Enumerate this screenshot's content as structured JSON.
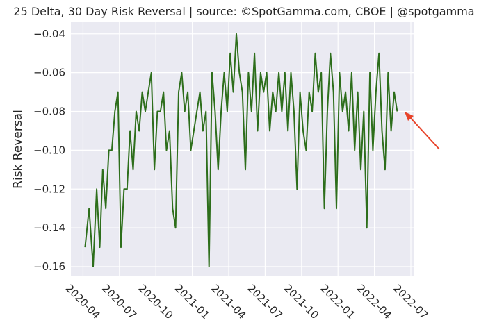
{
  "chart_data": {
    "type": "line",
    "title": "25 Delta, 30 Day Risk Reversal | source: ©SpotGamma.com, CBOE | @spotgamma",
    "y_label": "Risk Reversal",
    "x": [
      "2020-04",
      "2020-04",
      "2020-04",
      "2020-05",
      "2020-05",
      "2020-05",
      "2020-05",
      "2020-06",
      "2020-06",
      "2020-06",
      "2020-06",
      "2020-07",
      "2020-07",
      "2020-07",
      "2020-07",
      "2020-08",
      "2020-08",
      "2020-08",
      "2020-08",
      "2020-09",
      "2020-09",
      "2020-09",
      "2020-09",
      "2020-10",
      "2020-10",
      "2020-10",
      "2020-10",
      "2020-11",
      "2020-11",
      "2020-11",
      "2020-11",
      "2020-12",
      "2020-12",
      "2020-12",
      "2020-12",
      "2021-01",
      "2021-01",
      "2021-01",
      "2021-01",
      "2021-02",
      "2021-02",
      "2021-02",
      "2021-02",
      "2021-03",
      "2021-03",
      "2021-03",
      "2021-03",
      "2021-04",
      "2021-04",
      "2021-04",
      "2021-04",
      "2021-05",
      "2021-05",
      "2021-05",
      "2021-05",
      "2021-06",
      "2021-06",
      "2021-06",
      "2021-06",
      "2021-07",
      "2021-07",
      "2021-07",
      "2021-07",
      "2021-08",
      "2021-08",
      "2021-08",
      "2021-08",
      "2021-09",
      "2021-09",
      "2021-09",
      "2021-09",
      "2021-10",
      "2021-10",
      "2021-10",
      "2021-10",
      "2021-11",
      "2021-11",
      "2021-11",
      "2021-11",
      "2021-12",
      "2021-12",
      "2021-12",
      "2021-12",
      "2022-01",
      "2022-01",
      "2022-01",
      "2022-01",
      "2022-02",
      "2022-02",
      "2022-02",
      "2022-02",
      "2022-03",
      "2022-03",
      "2022-03",
      "2022-03",
      "2022-04",
      "2022-04",
      "2022-04",
      "2022-04",
      "2022-05",
      "2022-05",
      "2022-05",
      "2022-05"
    ],
    "series": [
      {
        "name": "Risk Reversal",
        "color": "#2d6e1b",
        "values": [
          -0.15,
          -0.13,
          -0.16,
          -0.12,
          -0.15,
          -0.11,
          -0.13,
          -0.1,
          -0.1,
          -0.08,
          -0.07,
          -0.15,
          -0.12,
          -0.12,
          -0.09,
          -0.11,
          -0.08,
          -0.09,
          -0.07,
          -0.08,
          -0.07,
          -0.06,
          -0.11,
          -0.08,
          -0.08,
          -0.07,
          -0.1,
          -0.09,
          -0.13,
          -0.14,
          -0.07,
          -0.06,
          -0.08,
          -0.07,
          -0.1,
          -0.09,
          -0.08,
          -0.07,
          -0.09,
          -0.08,
          -0.16,
          -0.06,
          -0.08,
          -0.11,
          -0.08,
          -0.06,
          -0.08,
          -0.05,
          -0.07,
          -0.04,
          -0.06,
          -0.07,
          -0.11,
          -0.06,
          -0.08,
          -0.05,
          -0.09,
          -0.06,
          -0.07,
          -0.06,
          -0.09,
          -0.07,
          -0.08,
          -0.06,
          -0.08,
          -0.06,
          -0.09,
          -0.06,
          -0.08,
          -0.12,
          -0.07,
          -0.09,
          -0.1,
          -0.07,
          -0.08,
          -0.05,
          -0.07,
          -0.06,
          -0.13,
          -0.08,
          -0.05,
          -0.07,
          -0.13,
          -0.06,
          -0.08,
          -0.07,
          -0.09,
          -0.06,
          -0.1,
          -0.07,
          -0.11,
          -0.08,
          -0.14,
          -0.06,
          -0.1,
          -0.07,
          -0.05,
          -0.09,
          -0.11,
          -0.06,
          -0.09,
          -0.07,
          -0.08
        ]
      }
    ],
    "xlim": [
      "2020-03",
      "2022-07"
    ],
    "xticks": [
      "2020-04",
      "2020-07",
      "2020-10",
      "2021-01",
      "2021-04",
      "2021-07",
      "2021-10",
      "2022-01",
      "2022-04",
      "2022-07"
    ],
    "ylim": [
      -0.165,
      -0.034
    ],
    "yticks": [
      {
        "value": -0.16,
        "label": "−0.16"
      },
      {
        "value": -0.14,
        "label": "−0.14"
      },
      {
        "value": -0.12,
        "label": "−0.12"
      },
      {
        "value": -0.1,
        "label": "−0.10"
      },
      {
        "value": -0.08,
        "label": "−0.08"
      },
      {
        "value": -0.06,
        "label": "−0.06"
      },
      {
        "value": -0.04,
        "label": "−0.04"
      }
    ],
    "grid": true
  }
}
